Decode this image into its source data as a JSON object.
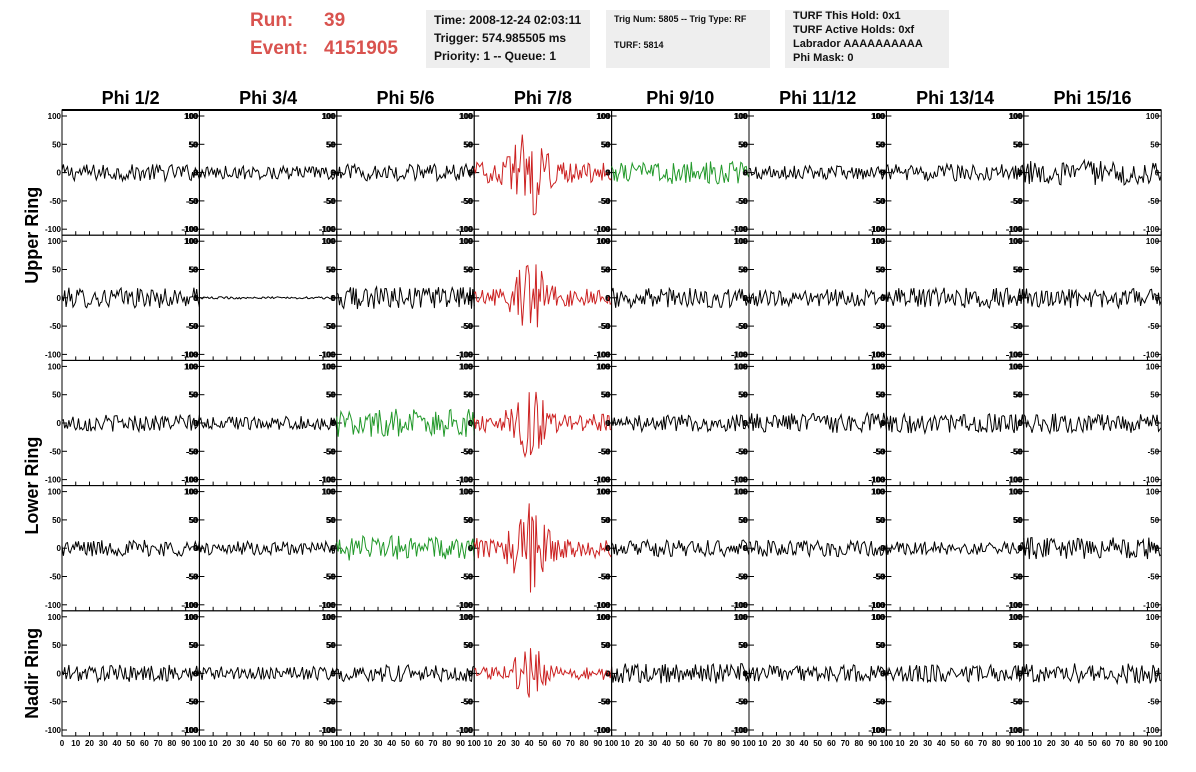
{
  "header": {
    "run_label": "Run:",
    "run_value": "39",
    "event_label": "Event:",
    "event_value": "4151905",
    "time": "Time: 2008-12-24 02:03:11",
    "trigger": "Trigger: 574.985505 ms",
    "priority": "Priority: 1 -- Queue: 1",
    "trig_num": "Trig Num: 5805 -- Trig Type: RF",
    "turf": "TURF: 5814",
    "turf_hold": "TURF This Hold: 0x1",
    "turf_active": "TURF Active Holds: 0xf",
    "labrador": "Labrador AAAAAAAAAA",
    "phi_mask": "Phi Mask: 0"
  },
  "colors": {
    "run_text": "#d9534f",
    "trace_default": "#000000",
    "trace_red": "#cc2222",
    "trace_green": "#22992a",
    "info_bg": "#eeeeee"
  },
  "chart_data": {
    "type": "line",
    "title": "",
    "columns": [
      "Phi 1/2",
      "Phi 3/4",
      "Phi 5/6",
      "Phi 7/8",
      "Phi 9/10",
      "Phi 11/12",
      "Phi 13/14",
      "Phi 15/16"
    ],
    "ring_labels": [
      "Upper Ring",
      "Lower Ring",
      "Nadir Ring"
    ],
    "rows_per_ring": [
      2,
      2,
      1
    ],
    "xlim": [
      0,
      100
    ],
    "ylim": [
      -100,
      100
    ],
    "x_ticks": [
      0,
      10,
      20,
      30,
      40,
      50,
      60,
      70,
      80,
      90,
      100
    ],
    "y_ticks": [
      -100,
      -50,
      0,
      50,
      100
    ],
    "x_tick_labels": [
      "0",
      "10",
      "20",
      "30",
      "40",
      "50",
      "60",
      "70",
      "80",
      "90",
      "100"
    ],
    "y_tick_labels": [
      "-100",
      "-50",
      "0",
      "50",
      "100"
    ],
    "trace_colors": [
      [
        "black",
        "black",
        "black",
        "red",
        "green",
        "black",
        "black",
        "black"
      ],
      [
        "black",
        "black",
        "black",
        "red",
        "black",
        "black",
        "black",
        "black"
      ],
      [
        "black",
        "black",
        "green",
        "red",
        "black",
        "black",
        "black",
        "black"
      ],
      [
        "black",
        "black",
        "green",
        "red",
        "black",
        "black",
        "black",
        "black"
      ],
      [
        "black",
        "black",
        "black",
        "red",
        "black",
        "black",
        "black",
        "black"
      ]
    ],
    "amplitude": [
      [
        15,
        12,
        15,
        40,
        20,
        12,
        15,
        22
      ],
      [
        18,
        2,
        20,
        35,
        18,
        15,
        18,
        18
      ],
      [
        15,
        12,
        25,
        35,
        15,
        18,
        18,
        18
      ],
      [
        15,
        12,
        22,
        40,
        15,
        15,
        12,
        20
      ],
      [
        15,
        12,
        15,
        25,
        18,
        15,
        15,
        18
      ]
    ],
    "peak_center_x": 40,
    "samples": 100
  }
}
